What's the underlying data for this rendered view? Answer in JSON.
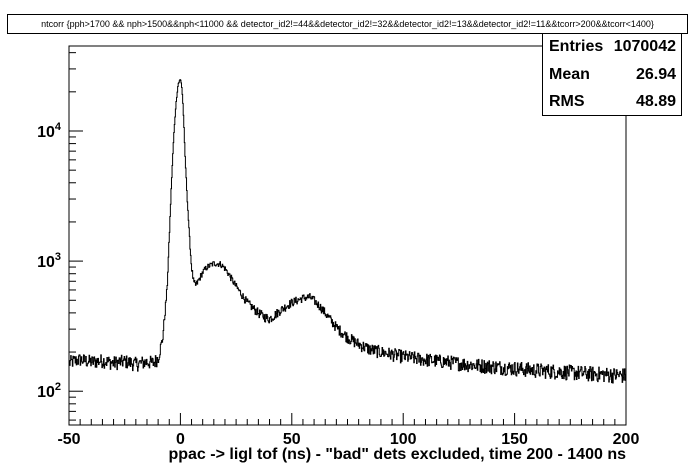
{
  "chart_data": {
    "type": "histogram",
    "title": "ntcorr {pph>1700 && nph>1500&&nph<11000 && detector_id2!=44&&detector_id2!=32&&detector_id2!=13&&detector_id2!=11&&tcorr>200&&tcorr<1400}",
    "xlabel": "ppac -> ligl tof (ns) - \"bad\" dets excluded, time 200 - 1400 ns",
    "ylabel": "",
    "xlim": [
      -50,
      200
    ],
    "ylim": [
      55,
      45000
    ],
    "yscale": "log",
    "grid": false,
    "x_ticks": [
      "-50",
      "0",
      "50",
      "100",
      "150",
      "200"
    ],
    "y_ticks": [
      {
        "base": "10",
        "exp": "2",
        "value": 100
      },
      {
        "base": "10",
        "exp": "3",
        "value": 1000
      },
      {
        "base": "10",
        "exp": "4",
        "value": 10000
      }
    ],
    "series": [
      {
        "x": [
          -50,
          -48,
          -45,
          -40,
          -35,
          -30,
          -25,
          -20,
          -15,
          -12,
          -10,
          -8,
          -6,
          -5,
          -4,
          -3,
          -2,
          -1,
          0,
          0.5,
          1,
          1.5,
          2,
          3,
          4,
          5,
          6,
          7,
          8,
          10,
          12,
          15,
          18,
          20,
          22,
          25,
          30,
          35,
          38,
          40,
          42,
          45,
          50,
          55,
          58,
          60,
          63,
          65,
          70,
          75,
          80,
          85,
          90,
          100,
          110,
          120,
          130,
          140,
          150,
          160,
          170,
          180,
          190,
          200
        ],
        "y": [
          165,
          170,
          175,
          168,
          172,
          165,
          170,
          162,
          168,
          165,
          180,
          250,
          600,
          1500,
          4000,
          9000,
          16000,
          23000,
          25000,
          23000,
          18000,
          12000,
          7000,
          3200,
          1600,
          900,
          680,
          650,
          700,
          820,
          900,
          960,
          950,
          880,
          780,
          640,
          480,
          400,
          370,
          360,
          380,
          420,
          480,
          520,
          530,
          500,
          440,
          400,
          310,
          260,
          230,
          210,
          200,
          185,
          175,
          168,
          160,
          155,
          150,
          145,
          142,
          138,
          135,
          132
        ]
      }
    ],
    "stats": {
      "entries_label": "Entries",
      "entries_value": "1070042",
      "mean_label": "Mean",
      "mean_value": "26.94",
      "rms_label": "RMS",
      "rms_value": "48.89"
    }
  }
}
